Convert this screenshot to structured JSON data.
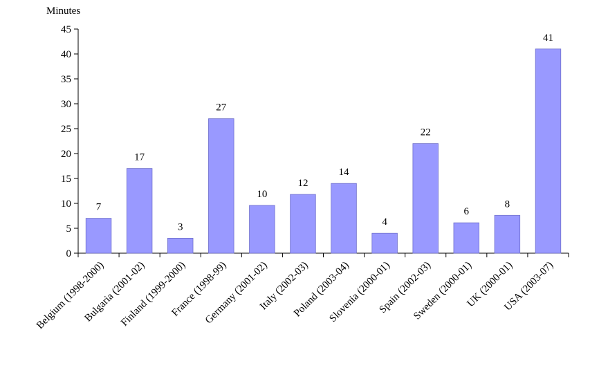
{
  "chart_data": {
    "type": "bar",
    "title": "",
    "xlabel": "",
    "ylabel": "Minutes",
    "ylim": [
      0,
      45
    ],
    "yticks": [
      0,
      5,
      10,
      15,
      20,
      25,
      30,
      35,
      40,
      45
    ],
    "grid": false,
    "legend": "none",
    "bar_color": "#9999ff",
    "bar_edge_color": "#6f6fcc",
    "categories": [
      "Belgium (1998-2000)",
      "Bulgaria (2001-02)",
      "Finland (1999-2000)",
      "France (1998-99)",
      "Germany (2001-02)",
      "Italy (2002-03)",
      "Poland (2003-04)",
      "Slovenia (2000-01)",
      "Spain (2002-03)",
      "Sweden (2000-01)",
      "UK (2000-01)",
      "USA (2003-07)"
    ],
    "values": [
      7,
      17,
      3,
      27,
      9.6,
      11.8,
      14,
      4,
      22,
      6.1,
      7.6,
      41
    ],
    "data_labels": [
      "7",
      "17",
      "3",
      "27",
      "10",
      "12",
      "14",
      "4",
      "22",
      "6",
      "8",
      "41"
    ]
  }
}
